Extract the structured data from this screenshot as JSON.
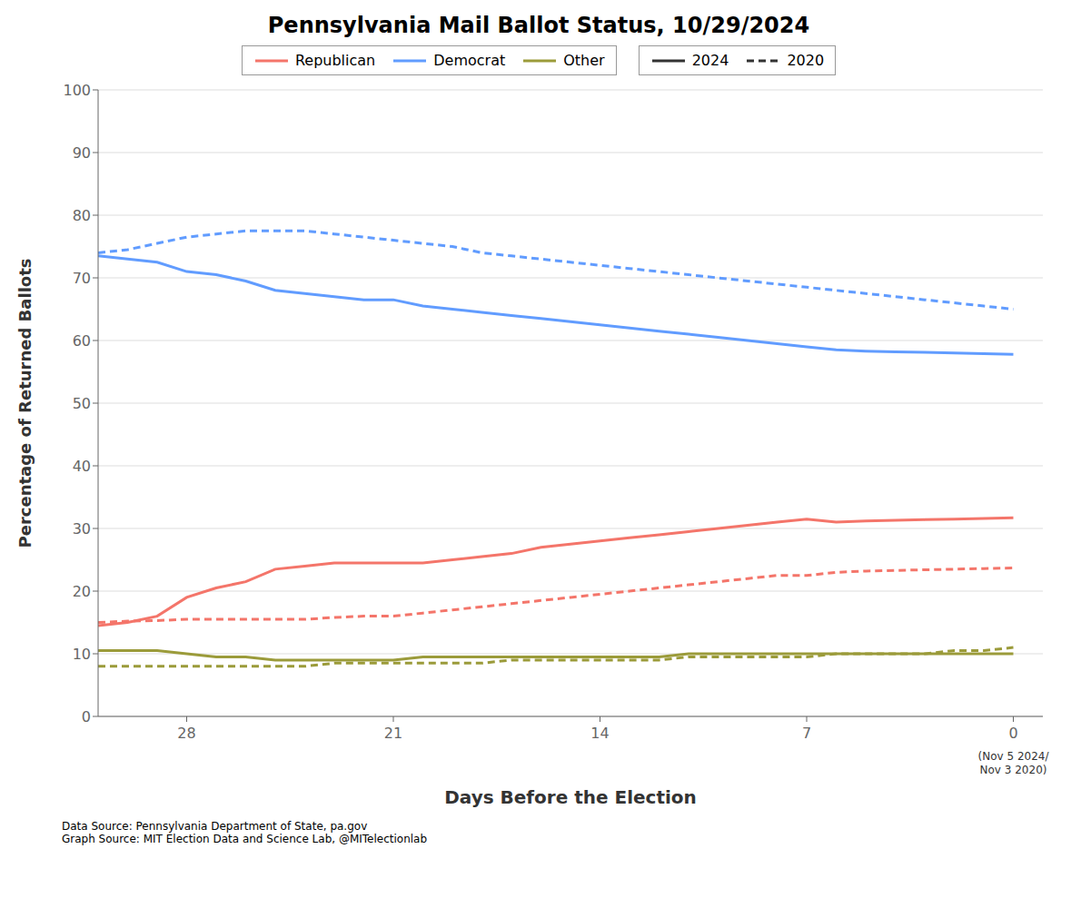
{
  "chart_data": {
    "type": "line",
    "title": "Pennsylvania Mail Ballot Status, 10/29/2024",
    "xlabel": "Days Before the Election",
    "ylabel": "Percentage of Returned Ballots",
    "footnotes": [
      "Data Source: Pennsylvania Department of State, pa.gov",
      "Graph Source: MIT Election Data and Science Lab, @MITelectionlab"
    ],
    "annotations": [
      {
        "text": "(Nov 5 2024/\nNov 3 2020)",
        "x": 0
      }
    ],
    "xlim": [
      31,
      -1
    ],
    "ylim": [
      0,
      100
    ],
    "xticks": [
      28,
      21,
      14,
      7,
      0
    ],
    "yticks": [
      0,
      10,
      20,
      30,
      40,
      50,
      60,
      70,
      80,
      90,
      100
    ],
    "grid": "y",
    "x": [
      31,
      30,
      29,
      28,
      27,
      26,
      25,
      24,
      23,
      22,
      21,
      20,
      19,
      18,
      17,
      16,
      15,
      14,
      13,
      12,
      11,
      10,
      9,
      8,
      7,
      6,
      5,
      4,
      3,
      2,
      1,
      0
    ],
    "series": [
      {
        "name": "Republican",
        "year": "2024",
        "color": "#F4756A",
        "line_style": "solid",
        "values": [
          14.5,
          15.0,
          16.0,
          19.0,
          20.5,
          21.5,
          23.5,
          24.0,
          24.5,
          24.5,
          24.5,
          24.5,
          25.0,
          25.5,
          26.0,
          27.0,
          27.5,
          28.0,
          28.5,
          29.0,
          29.5,
          30.0,
          30.5,
          31.0,
          31.5,
          31.0,
          31.2,
          31.3,
          31.4,
          31.5,
          31.6,
          31.7
        ]
      },
      {
        "name": "Democrat",
        "year": "2024",
        "color": "#619CFF",
        "line_style": "solid",
        "values": [
          73.5,
          73.0,
          72.5,
          71.0,
          70.5,
          69.5,
          68.0,
          67.5,
          67.0,
          66.5,
          66.5,
          65.5,
          65.0,
          64.5,
          64.0,
          63.5,
          63.0,
          62.5,
          62.0,
          61.5,
          61.0,
          60.5,
          60.0,
          59.5,
          59.0,
          58.5,
          58.3,
          58.2,
          58.1,
          58.0,
          57.9,
          57.8
        ]
      },
      {
        "name": "Other",
        "year": "2024",
        "color": "#9B9B3A",
        "line_style": "solid",
        "values": [
          10.5,
          10.5,
          10.5,
          10.0,
          9.5,
          9.5,
          9.0,
          9.0,
          9.0,
          9.0,
          9.0,
          9.5,
          9.5,
          9.5,
          9.5,
          9.5,
          9.5,
          9.5,
          9.5,
          9.5,
          10.0,
          10.0,
          10.0,
          10.0,
          10.0,
          10.0,
          10.0,
          10.0,
          10.0,
          10.0,
          10.0,
          10.0
        ]
      },
      {
        "name": "Republican",
        "year": "2020",
        "color": "#F4756A",
        "line_style": "dashed",
        "values": [
          15.0,
          15.2,
          15.3,
          15.5,
          15.5,
          15.5,
          15.5,
          15.5,
          15.8,
          16.0,
          16.0,
          16.5,
          17.0,
          17.5,
          18.0,
          18.5,
          19.0,
          19.5,
          20.0,
          20.5,
          21.0,
          21.5,
          22.0,
          22.5,
          22.5,
          23.0,
          23.2,
          23.3,
          23.4,
          23.5,
          23.6,
          23.7
        ]
      },
      {
        "name": "Democrat",
        "year": "2020",
        "color": "#619CFF",
        "line_style": "dashed",
        "values": [
          74.0,
          74.5,
          75.5,
          76.5,
          77.0,
          77.5,
          77.5,
          77.5,
          77.0,
          76.5,
          76.0,
          75.5,
          75.0,
          74.0,
          73.5,
          73.0,
          72.5,
          72.0,
          71.5,
          71.0,
          70.5,
          70.0,
          69.5,
          69.0,
          68.5,
          68.0,
          67.5,
          67.0,
          66.5,
          66.0,
          65.5,
          65.0
        ]
      },
      {
        "name": "Other",
        "year": "2020",
        "color": "#9B9B3A",
        "line_style": "dashed",
        "values": [
          8.0,
          8.0,
          8.0,
          8.0,
          8.0,
          8.0,
          8.0,
          8.0,
          8.5,
          8.5,
          8.5,
          8.5,
          8.5,
          8.5,
          9.0,
          9.0,
          9.0,
          9.0,
          9.0,
          9.0,
          9.5,
          9.5,
          9.5,
          9.5,
          9.5,
          10.0,
          10.0,
          10.0,
          10.0,
          10.5,
          10.5,
          11.0
        ]
      }
    ]
  }
}
